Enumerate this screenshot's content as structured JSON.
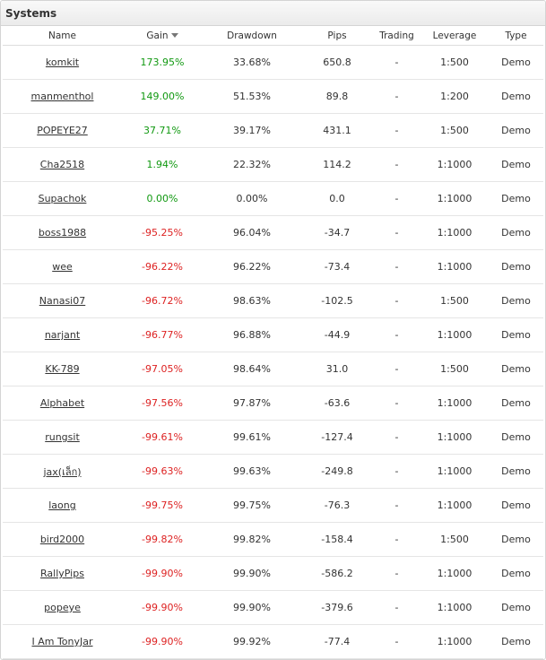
{
  "panel": {
    "title": "Systems"
  },
  "columns": {
    "name": "Name",
    "gain": "Gain",
    "drawdown": "Drawdown",
    "pips": "Pips",
    "trading": "Trading",
    "leverage": "Leverage",
    "type": "Type"
  },
  "colors": {
    "positive": "#119911",
    "negative": "#dd2222"
  },
  "rows": [
    {
      "name": "komkit",
      "gain": "173.95%",
      "gain_sign": "pos",
      "drawdown": "33.68%",
      "pips": "650.8",
      "trading": "-",
      "leverage": "1:500",
      "type": "Demo"
    },
    {
      "name": "manmenthol",
      "gain": "149.00%",
      "gain_sign": "pos",
      "drawdown": "51.53%",
      "pips": "89.8",
      "trading": "-",
      "leverage": "1:200",
      "type": "Demo"
    },
    {
      "name": "POPEYE27",
      "gain": "37.71%",
      "gain_sign": "pos",
      "drawdown": "39.17%",
      "pips": "431.1",
      "trading": "-",
      "leverage": "1:500",
      "type": "Demo"
    },
    {
      "name": "Cha2518",
      "gain": "1.94%",
      "gain_sign": "pos",
      "drawdown": "22.32%",
      "pips": "114.2",
      "trading": "-",
      "leverage": "1:1000",
      "type": "Demo"
    },
    {
      "name": "Supachok",
      "gain": "0.00%",
      "gain_sign": "pos",
      "drawdown": "0.00%",
      "pips": "0.0",
      "trading": "-",
      "leverage": "1:1000",
      "type": "Demo"
    },
    {
      "name": "boss1988",
      "gain": "-95.25%",
      "gain_sign": "neg",
      "drawdown": "96.04%",
      "pips": "-34.7",
      "trading": "-",
      "leverage": "1:1000",
      "type": "Demo"
    },
    {
      "name": "wee",
      "gain": "-96.22%",
      "gain_sign": "neg",
      "drawdown": "96.22%",
      "pips": "-73.4",
      "trading": "-",
      "leverage": "1:1000",
      "type": "Demo"
    },
    {
      "name": "Nanasi07",
      "gain": "-96.72%",
      "gain_sign": "neg",
      "drawdown": "98.63%",
      "pips": "-102.5",
      "trading": "-",
      "leverage": "1:500",
      "type": "Demo"
    },
    {
      "name": "narjant",
      "gain": "-96.77%",
      "gain_sign": "neg",
      "drawdown": "96.88%",
      "pips": "-44.9",
      "trading": "-",
      "leverage": "1:1000",
      "type": "Demo"
    },
    {
      "name": "KK-789",
      "gain": "-97.05%",
      "gain_sign": "neg",
      "drawdown": "98.64%",
      "pips": "31.0",
      "trading": "-",
      "leverage": "1:500",
      "type": "Demo"
    },
    {
      "name": "Alphabet",
      "gain": "-97.56%",
      "gain_sign": "neg",
      "drawdown": "97.87%",
      "pips": "-63.6",
      "trading": "-",
      "leverage": "1:1000",
      "type": "Demo"
    },
    {
      "name": "rungsit",
      "gain": "-99.61%",
      "gain_sign": "neg",
      "drawdown": "99.61%",
      "pips": "-127.4",
      "trading": "-",
      "leverage": "1:1000",
      "type": "Demo"
    },
    {
      "name": "jax(เล็ก)",
      "gain": "-99.63%",
      "gain_sign": "neg",
      "drawdown": "99.63%",
      "pips": "-249.8",
      "trading": "-",
      "leverage": "1:1000",
      "type": "Demo"
    },
    {
      "name": "laong",
      "gain": "-99.75%",
      "gain_sign": "neg",
      "drawdown": "99.75%",
      "pips": "-76.3",
      "trading": "-",
      "leverage": "1:1000",
      "type": "Demo"
    },
    {
      "name": "bird2000",
      "gain": "-99.82%",
      "gain_sign": "neg",
      "drawdown": "99.82%",
      "pips": "-158.4",
      "trading": "-",
      "leverage": "1:500",
      "type": "Demo"
    },
    {
      "name": "RallyPips",
      "gain": "-99.90%",
      "gain_sign": "neg",
      "drawdown": "99.90%",
      "pips": "-586.2",
      "trading": "-",
      "leverage": "1:1000",
      "type": "Demo"
    },
    {
      "name": "popeye",
      "gain": "-99.90%",
      "gain_sign": "neg",
      "drawdown": "99.90%",
      "pips": "-379.6",
      "trading": "-",
      "leverage": "1:1000",
      "type": "Demo"
    },
    {
      "name": "I Am TonyJar",
      "gain": "-99.90%",
      "gain_sign": "neg",
      "drawdown": "99.92%",
      "pips": "-77.4",
      "trading": "-",
      "leverage": "1:1000",
      "type": "Demo"
    }
  ]
}
